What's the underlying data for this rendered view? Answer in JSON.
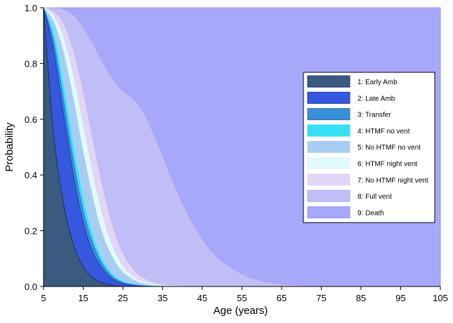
{
  "chart_data": {
    "type": "area",
    "stacked": true,
    "title": "",
    "xlabel": "Age (years)",
    "ylabel": "Probability",
    "xlim": [
      5,
      105
    ],
    "ylim": [
      0,
      1
    ],
    "xticks": [
      5,
      15,
      25,
      35,
      45,
      55,
      65,
      75,
      85,
      95,
      105
    ],
    "yticks": [
      0.0,
      0.2,
      0.4,
      0.6,
      0.8,
      1.0
    ],
    "ytick_labels": [
      "0.0",
      "0.2",
      "0.4",
      "0.6",
      "0.8",
      "1.0"
    ],
    "legend_position": "right-center",
    "x": [
      5,
      7.5,
      10,
      12.5,
      15,
      17.5,
      20,
      22.5,
      25,
      27.5,
      30,
      32.5,
      35,
      37.5,
      40,
      42.5,
      45,
      47.5,
      50,
      55,
      60,
      65,
      70,
      75,
      80,
      85,
      90,
      95,
      100,
      105
    ],
    "cumulative_upper_bounds": [
      {
        "name": "1: Early Amb",
        "color": "#3a5a80",
        "edge": "#1b2f6e",
        "values": [
          1.0,
          0.55,
          0.3,
          0.15,
          0.07,
          0.03,
          0.012,
          0.004,
          0.001,
          0.0,
          0.0,
          0.0,
          0.0,
          0.0,
          0.0,
          0.0,
          0.0,
          0.0,
          0.0,
          0.0,
          0.0,
          0.0,
          0.0,
          0.0,
          0.0,
          0.0,
          0.0,
          0.0,
          0.0,
          0.0
        ]
      },
      {
        "name": "2: Late Amb",
        "color": "#3558de",
        "edge": "#1a3aa8",
        "values": [
          1.0,
          0.85,
          0.62,
          0.4,
          0.23,
          0.12,
          0.06,
          0.025,
          0.01,
          0.004,
          0.0015,
          0.0,
          0.0,
          0.0,
          0.0,
          0.0,
          0.0,
          0.0,
          0.0,
          0.0,
          0.0,
          0.0,
          0.0,
          0.0,
          0.0,
          0.0,
          0.0,
          0.0,
          0.0,
          0.0
        ]
      },
      {
        "name": "3: Transfer",
        "color": "#3a90d8",
        "edge": "#2b6fb0",
        "values": [
          1.0,
          0.88,
          0.67,
          0.45,
          0.27,
          0.15,
          0.075,
          0.033,
          0.014,
          0.006,
          0.002,
          0.0,
          0.0,
          0.0,
          0.0,
          0.0,
          0.0,
          0.0,
          0.0,
          0.0,
          0.0,
          0.0,
          0.0,
          0.0,
          0.0,
          0.0,
          0.0,
          0.0,
          0.0,
          0.0
        ]
      },
      {
        "name": "4: HTMF no vent",
        "color": "#35e0f5",
        "edge": "#35e0f5",
        "values": [
          1.0,
          0.91,
          0.72,
          0.5,
          0.31,
          0.175,
          0.09,
          0.04,
          0.018,
          0.008,
          0.003,
          0.001,
          0.0,
          0.0,
          0.0,
          0.0,
          0.0,
          0.0,
          0.0,
          0.0,
          0.0,
          0.0,
          0.0,
          0.0,
          0.0,
          0.0,
          0.0,
          0.0,
          0.0,
          0.0
        ]
      },
      {
        "name": "5: No HTMF no vent",
        "color": "#a8cdf2",
        "edge": "#a8cdf2",
        "values": [
          1.0,
          0.95,
          0.84,
          0.67,
          0.48,
          0.31,
          0.18,
          0.1,
          0.05,
          0.025,
          0.01,
          0.004,
          0.0015,
          0.0,
          0.0,
          0.0,
          0.0,
          0.0,
          0.0,
          0.0,
          0.0,
          0.0,
          0.0,
          0.0,
          0.0,
          0.0,
          0.0,
          0.0,
          0.0,
          0.0
        ]
      },
      {
        "name": "6: HTMF night vent",
        "color": "#e2fafc",
        "edge": "#e2fafc",
        "values": [
          1.0,
          0.97,
          0.89,
          0.75,
          0.57,
          0.39,
          0.24,
          0.135,
          0.07,
          0.035,
          0.016,
          0.007,
          0.003,
          0.001,
          0.0,
          0.0,
          0.0,
          0.0,
          0.0,
          0.0,
          0.0,
          0.0,
          0.0,
          0.0,
          0.0,
          0.0,
          0.0,
          0.0,
          0.0,
          0.0
        ]
      },
      {
        "name": "7: No HTMF night vent",
        "color": "#e1d6f7",
        "edge": "#e1d6f7",
        "values": [
          1.0,
          0.985,
          0.94,
          0.84,
          0.69,
          0.51,
          0.34,
          0.205,
          0.115,
          0.06,
          0.03,
          0.014,
          0.006,
          0.0025,
          0.001,
          0.0,
          0.0,
          0.0,
          0.0,
          0.0,
          0.0,
          0.0,
          0.0,
          0.0,
          0.0,
          0.0,
          0.0,
          0.0,
          0.0,
          0.0
        ]
      },
      {
        "name": "8: Full vent",
        "color": "#c1bdf6",
        "edge": "#a9a6f2",
        "values": [
          1.0,
          1.0,
          0.995,
          0.975,
          0.93,
          0.87,
          0.8,
          0.745,
          0.7,
          0.675,
          0.63,
          0.555,
          0.47,
          0.38,
          0.3,
          0.23,
          0.17,
          0.125,
          0.09,
          0.045,
          0.02,
          0.009,
          0.0035,
          0.0015,
          0.0005,
          0.0,
          0.0,
          0.0,
          0.0,
          0.0
        ]
      },
      {
        "name": "9: Death",
        "color": "#a8a8fb",
        "edge": "#9595f5",
        "values": [
          1.0,
          1.0,
          1.0,
          1.0,
          1.0,
          1.0,
          1.0,
          1.0,
          1.0,
          1.0,
          1.0,
          1.0,
          1.0,
          1.0,
          1.0,
          1.0,
          1.0,
          1.0,
          1.0,
          1.0,
          1.0,
          1.0,
          1.0,
          1.0,
          1.0,
          1.0,
          1.0,
          1.0,
          1.0,
          1.0
        ]
      }
    ]
  }
}
